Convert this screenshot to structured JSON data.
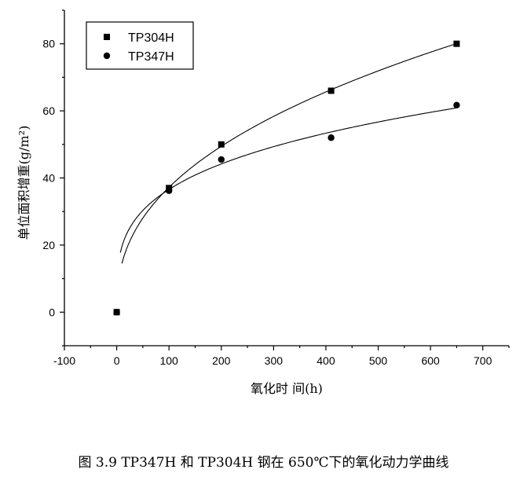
{
  "chart_data": {
    "type": "scatter",
    "caption": "图 3.9    TP347H 和 TP304H 钢在 650℃下的氧化动力学曲线",
    "xlabel": "氧化时 间(h)",
    "ylabel": "单位面积增重(g/m²)",
    "xlim": [
      -100,
      750
    ],
    "ylim": [
      -10,
      90
    ],
    "xticks": [
      -100,
      0,
      100,
      200,
      300,
      400,
      500,
      600,
      700
    ],
    "yticks": [
      0,
      20,
      40,
      60,
      80
    ],
    "legend_position": "top-left",
    "grid": false,
    "series": [
      {
        "name": "TP304H",
        "marker": "square",
        "x": [
          0,
          100,
          200,
          410,
          650
        ],
        "y": [
          0,
          37,
          50,
          66,
          80
        ],
        "fit_curve": "power"
      },
      {
        "name": "TP347H",
        "marker": "circle",
        "x": [
          0,
          100,
          200,
          410,
          650
        ],
        "y": [
          0,
          36.2,
          45.5,
          52,
          61.7
        ],
        "fit_curve": "power"
      }
    ]
  }
}
